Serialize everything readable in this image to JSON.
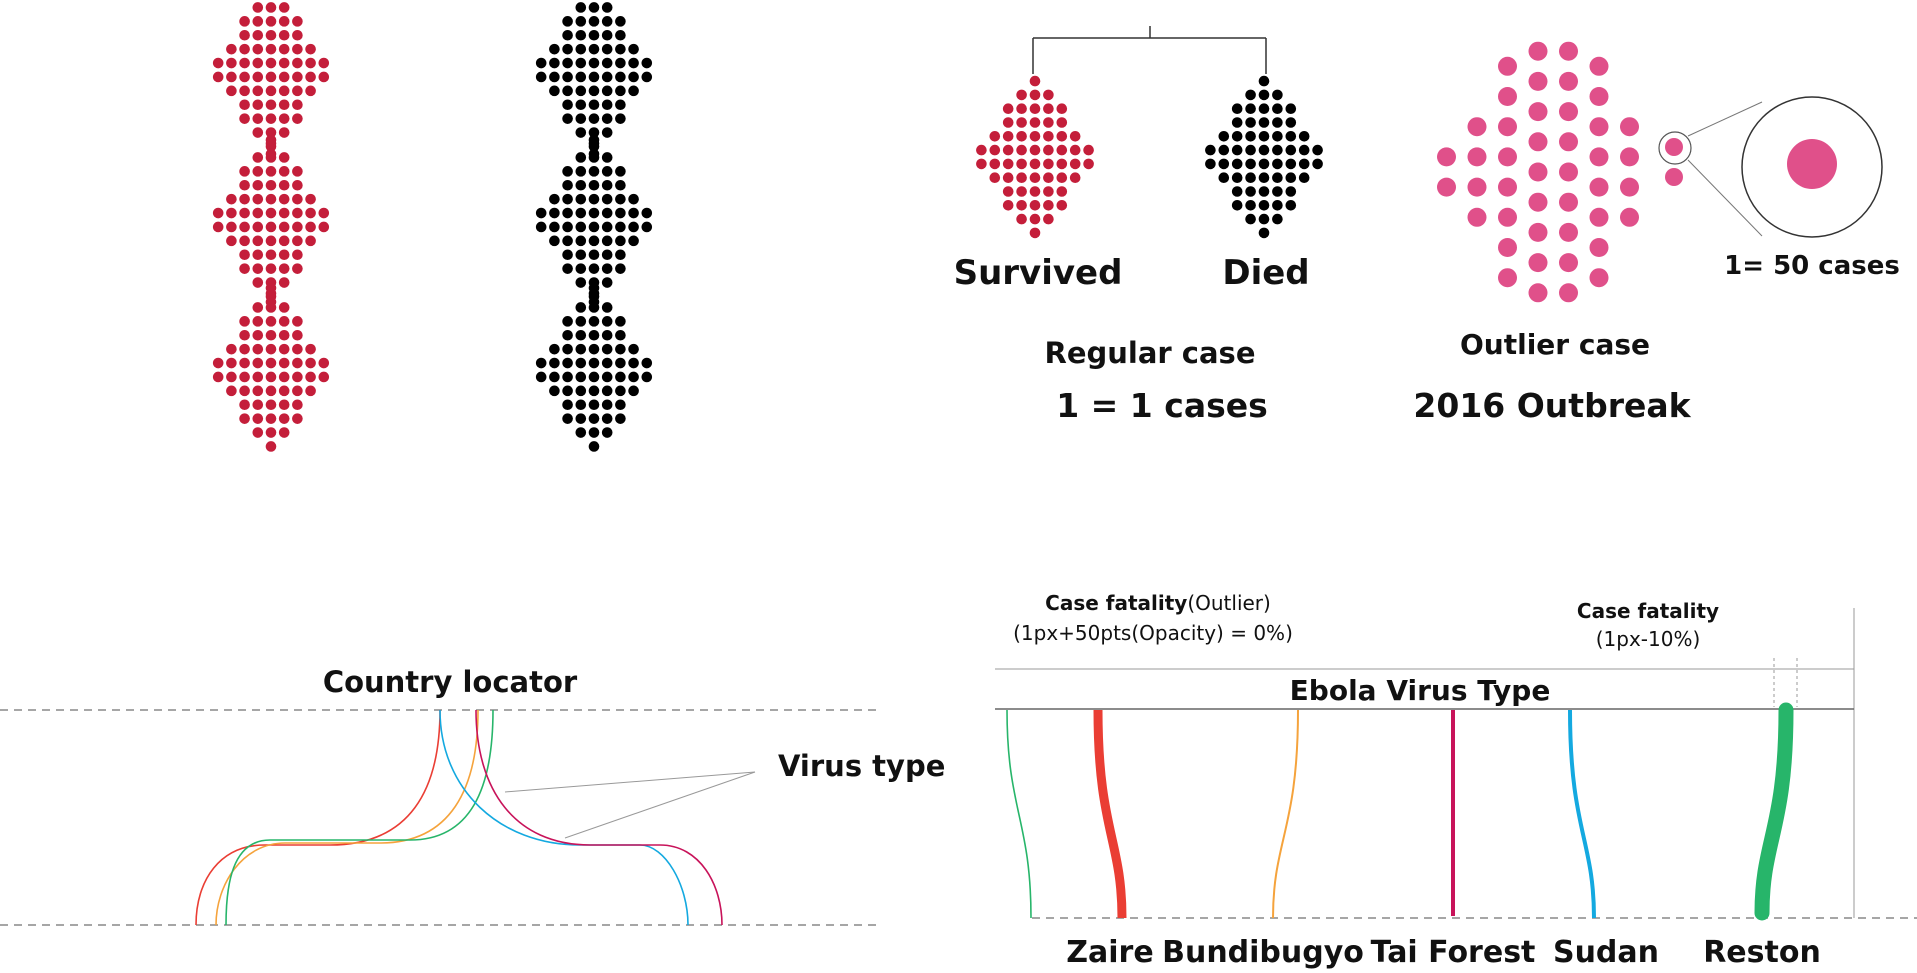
{
  "legend": {
    "survived": "Survived",
    "died": "Died",
    "regular_case": "Regular case",
    "regular_scale": "1 = 1 cases",
    "outlier_case": "Outlier case",
    "outlier_outbreak": "2016 Outbreak",
    "outlier_scale": "1= 50 cases"
  },
  "colors": {
    "survived": "#c41e3a",
    "died": "#000000",
    "outlier": "#e0508a",
    "zaire": "#ea3e34",
    "bundibugyo": "#f5a33c",
    "tai_forest": "#c8135a",
    "sudan": "#14a9e0",
    "reston": "#27b56a"
  },
  "left_diagram": {
    "title": "Country locator",
    "virus_label": "Virus type"
  },
  "right_diagram": {
    "note_left_bold": "Case fatality",
    "note_left_rest": "(Outlier)",
    "note_left_line2": "(1px+50pts(Opacity) = 0%)",
    "note_right_bold": "Case fatality",
    "note_right_line2": "(1px-10%)",
    "header": "Ebola Virus Type",
    "virus_types": [
      "Zaire",
      "Bundibugyo",
      "Tai Forest",
      "Sudan",
      "Reston"
    ]
  }
}
